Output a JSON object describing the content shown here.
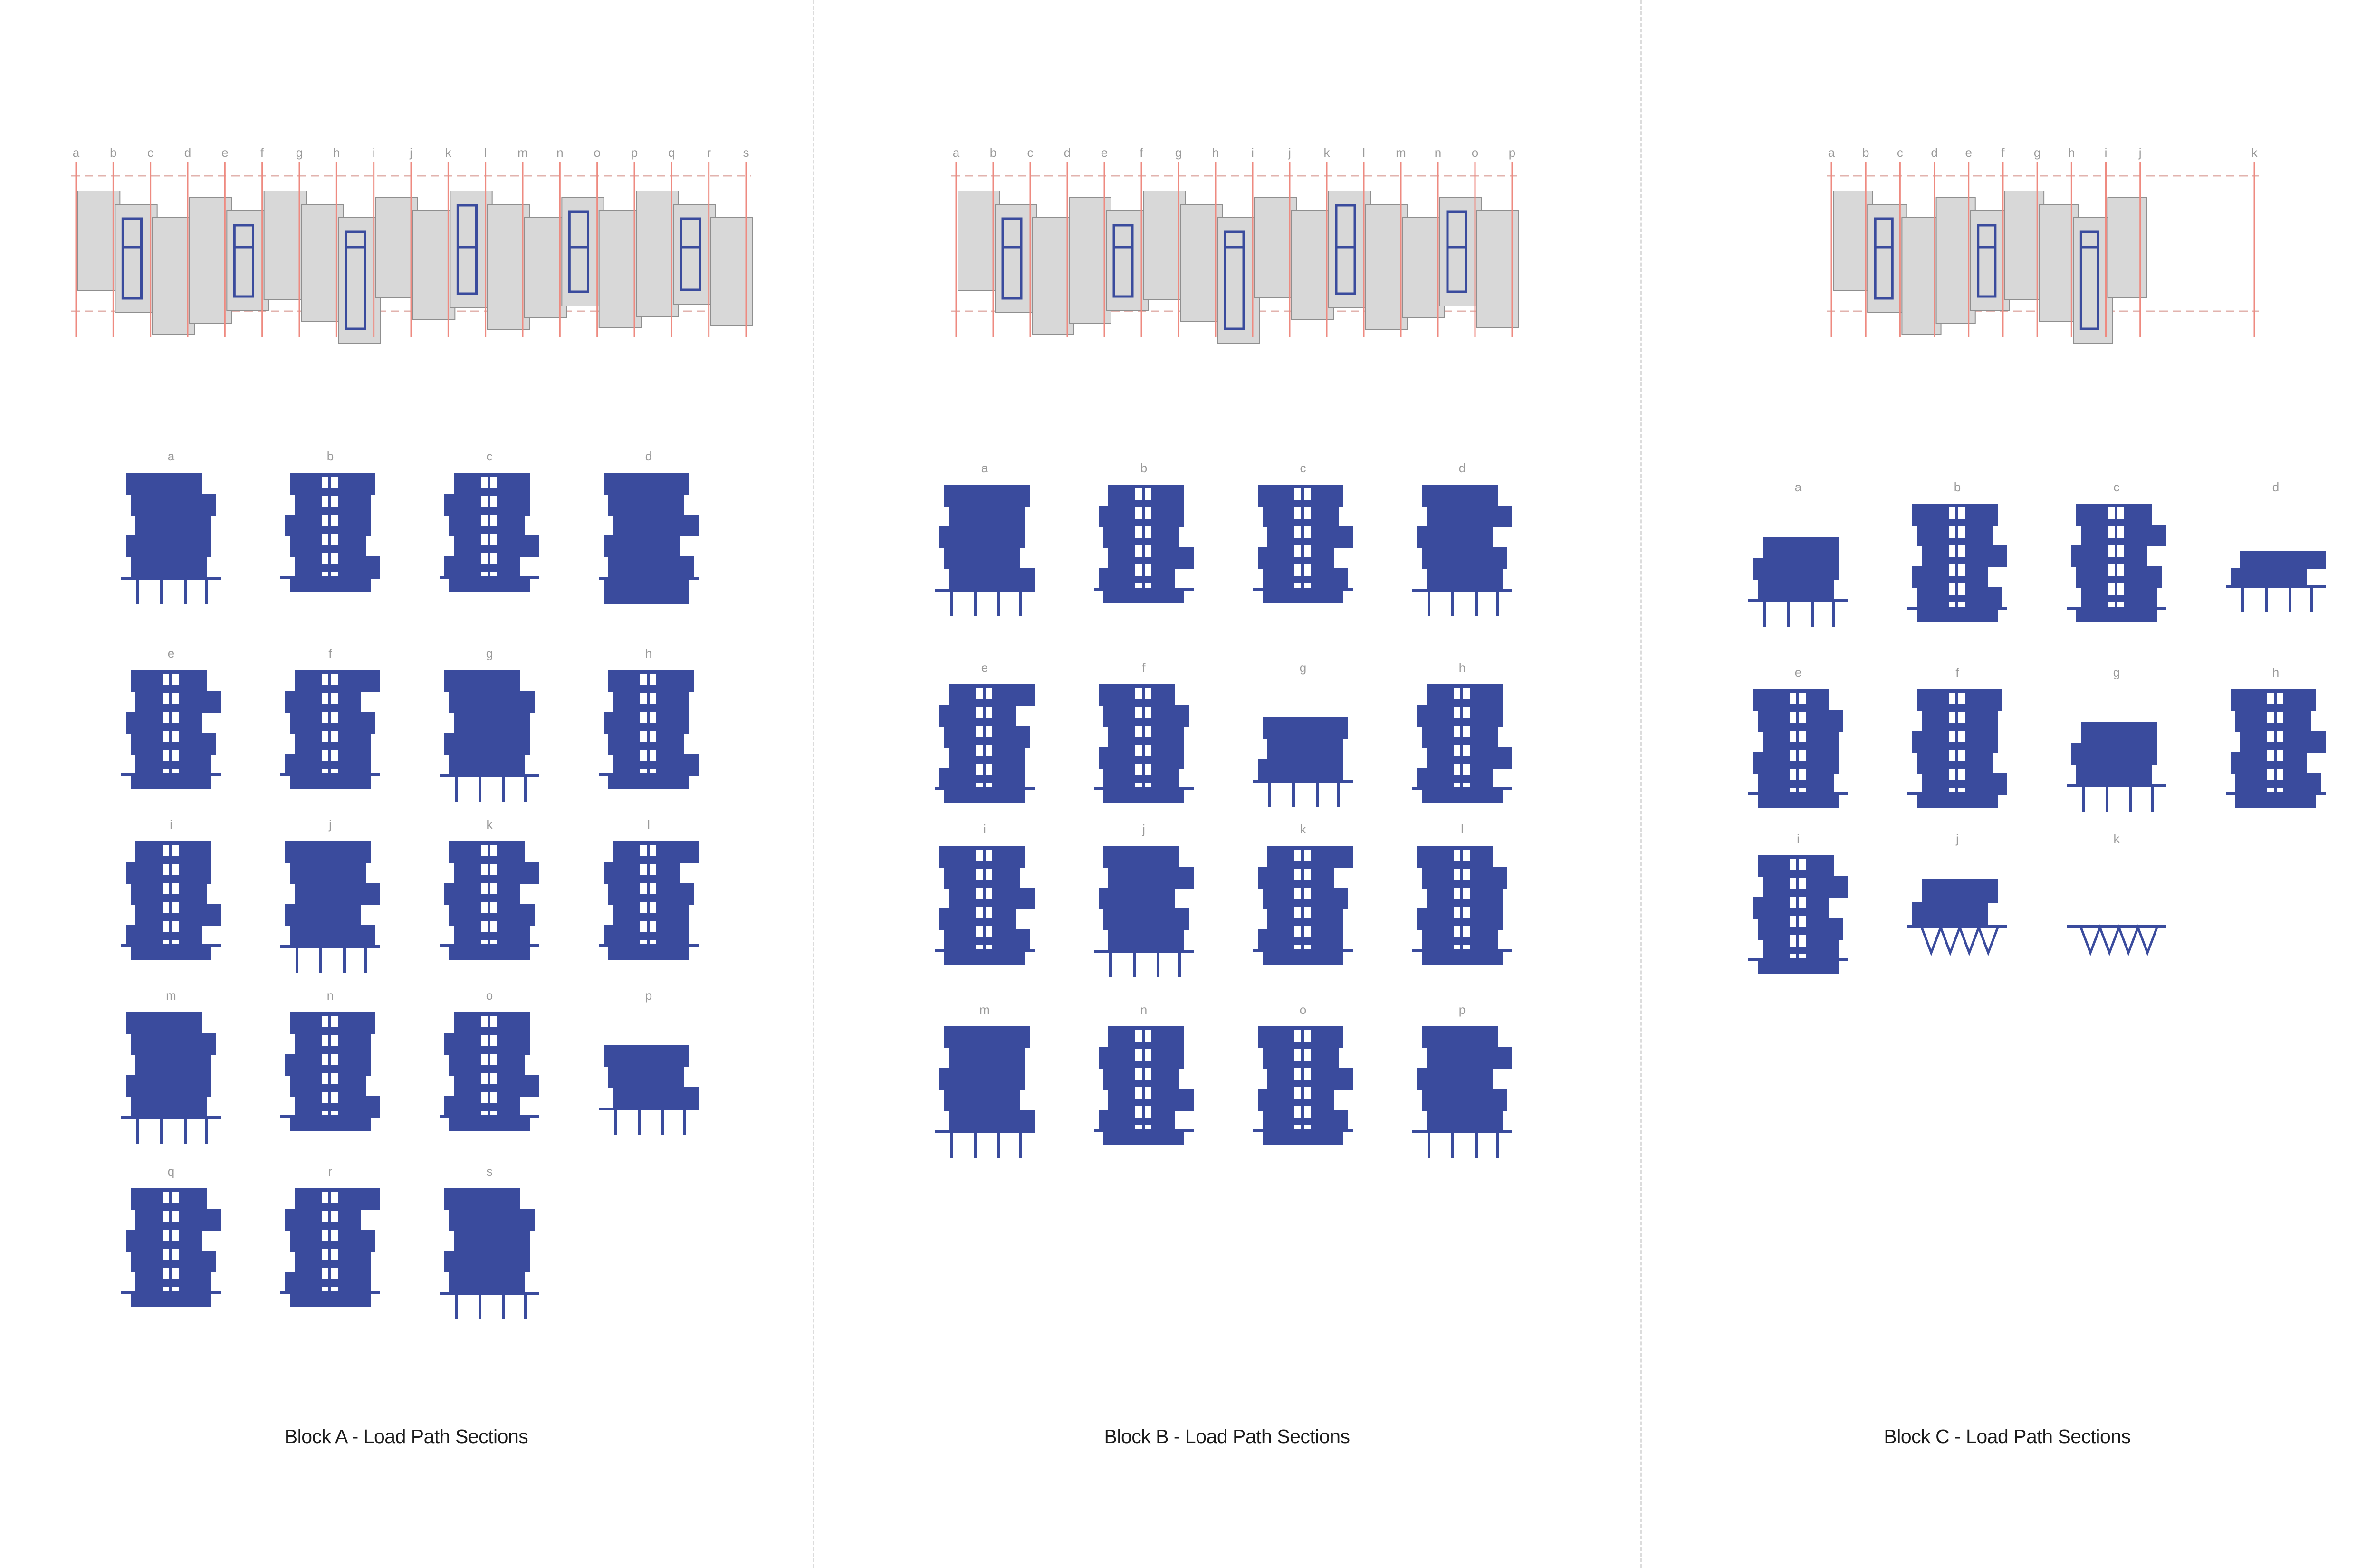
{
  "colors": {
    "structure": "#3a4b9d",
    "gridline": "#ee8a80",
    "massing": "#d8d8d8",
    "divider": "#dcdcdc",
    "label": "#9a9a9a",
    "caption": "#1b1b1b"
  },
  "blocks": [
    {
      "name": "Block A",
      "caption": "Block A - Load Path Sections",
      "gridlines": [
        "a",
        "b",
        "c",
        "d",
        "e",
        "f",
        "g",
        "h",
        "i",
        "j",
        "k",
        "l",
        "m",
        "n",
        "o",
        "p",
        "q",
        "r",
        "s"
      ],
      "sections": [
        {
          "label": "a",
          "kind": "stack"
        },
        {
          "label": "b",
          "kind": "core"
        },
        {
          "label": "c",
          "kind": "core"
        },
        {
          "label": "d",
          "kind": "solid"
        },
        {
          "label": "e",
          "kind": "core"
        },
        {
          "label": "f",
          "kind": "core"
        },
        {
          "label": "g",
          "kind": "stack"
        },
        {
          "label": "h",
          "kind": "core"
        },
        {
          "label": "i",
          "kind": "core"
        },
        {
          "label": "j",
          "kind": "stack"
        },
        {
          "label": "k",
          "kind": "core"
        },
        {
          "label": "l",
          "kind": "core"
        },
        {
          "label": "m",
          "kind": "stack"
        },
        {
          "label": "n",
          "kind": "core"
        },
        {
          "label": "o",
          "kind": "core"
        },
        {
          "label": "p",
          "kind": "short"
        },
        {
          "label": "q",
          "kind": "core"
        },
        {
          "label": "r",
          "kind": "core"
        },
        {
          "label": "s",
          "kind": "stack"
        }
      ]
    },
    {
      "name": "Block B",
      "caption": "Block B - Load Path Sections",
      "gridlines": [
        "a",
        "b",
        "c",
        "d",
        "e",
        "f",
        "g",
        "h",
        "i",
        "j",
        "k",
        "l",
        "m",
        "n",
        "o",
        "p"
      ],
      "sections": [
        {
          "label": "a",
          "kind": "stack"
        },
        {
          "label": "b",
          "kind": "core"
        },
        {
          "label": "c",
          "kind": "core"
        },
        {
          "label": "d",
          "kind": "stack"
        },
        {
          "label": "e",
          "kind": "core"
        },
        {
          "label": "f",
          "kind": "core"
        },
        {
          "label": "g",
          "kind": "short"
        },
        {
          "label": "h",
          "kind": "core"
        },
        {
          "label": "i",
          "kind": "core"
        },
        {
          "label": "j",
          "kind": "stack"
        },
        {
          "label": "k",
          "kind": "core"
        },
        {
          "label": "l",
          "kind": "core"
        },
        {
          "label": "m",
          "kind": "stack"
        },
        {
          "label": "n",
          "kind": "core"
        },
        {
          "label": "o",
          "kind": "core"
        },
        {
          "label": "p",
          "kind": "stack"
        }
      ]
    },
    {
      "name": "Block C",
      "caption": "Block C - Load Path Sections",
      "gridlines": [
        "a",
        "b",
        "c",
        "d",
        "e",
        "f",
        "g",
        "h",
        "i",
        "j",
        "k"
      ],
      "sections": [
        {
          "label": "a",
          "kind": "short"
        },
        {
          "label": "b",
          "kind": "core"
        },
        {
          "label": "c",
          "kind": "core"
        },
        {
          "label": "d",
          "kind": "low"
        },
        {
          "label": "e",
          "kind": "core"
        },
        {
          "label": "f",
          "kind": "core"
        },
        {
          "label": "g",
          "kind": "short"
        },
        {
          "label": "h",
          "kind": "core"
        },
        {
          "label": "i",
          "kind": "core"
        },
        {
          "label": "j",
          "kind": "truss"
        },
        {
          "label": "k",
          "kind": "trussonly"
        }
      ]
    }
  ]
}
